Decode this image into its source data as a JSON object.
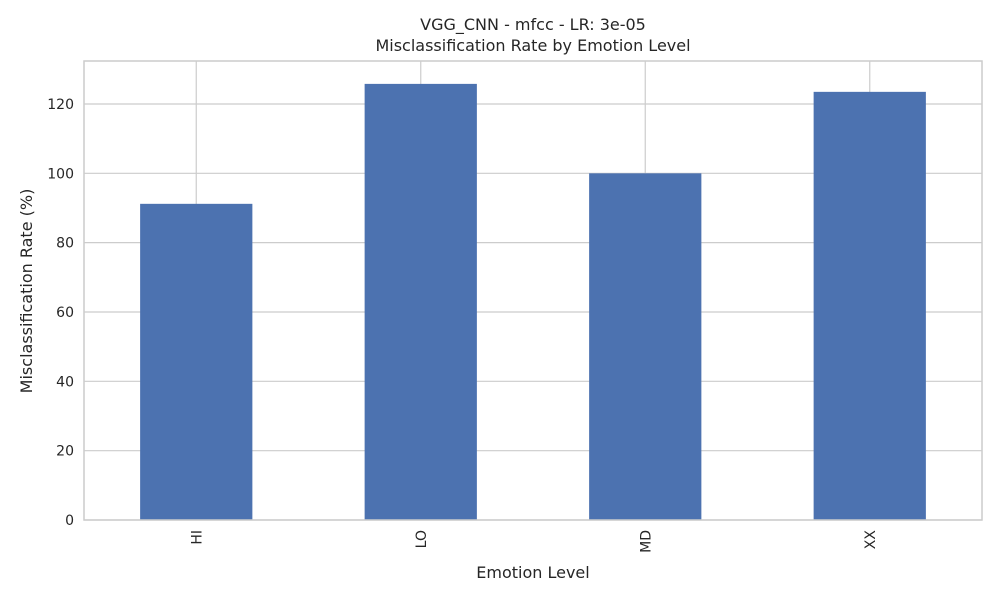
{
  "chart_data": {
    "type": "bar",
    "title": "VGG_CNN - mfcc - LR: 3e-05",
    "subtitle": "Misclassification Rate by Emotion Level",
    "xlabel": "Emotion Level",
    "ylabel": "Misclassification Rate (%)",
    "categories": [
      "HI",
      "LO",
      "MD",
      "XX"
    ],
    "values": [
      91.2,
      125.8,
      100.0,
      123.5
    ],
    "ylim": [
      0,
      132.4
    ],
    "yticks": [
      0,
      20,
      40,
      60,
      80,
      100,
      120
    ],
    "grid": true,
    "bar_color": "#4c72b0",
    "legend": "none"
  }
}
